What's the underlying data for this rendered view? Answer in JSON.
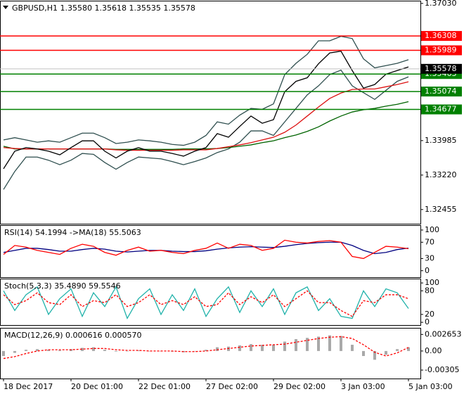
{
  "chart_data": [
    {
      "type": "line",
      "title": "GBPUSD,H1  1.35580 1.35618 1.35535 1.35578",
      "ylim": [
        1.3214,
        1.3709
      ],
      "yticks": [
        {
          "value": 1.3703,
          "label": "1.37030"
        },
        1.33985,
        {
          "value": 1.3322,
          "label": "1.33220"
        },
        1.32455
      ],
      "series": [
        {
          "color": "#2f4f4f",
          "values": [
            1.34,
            1.3405,
            1.34,
            1.3395,
            1.3398,
            1.3395,
            1.3405,
            1.3415,
            1.3415,
            1.3405,
            1.3392,
            1.3395,
            1.34,
            1.3398,
            1.3395,
            1.339,
            1.3388,
            1.3395,
            1.341,
            1.344,
            1.3435,
            1.3455,
            1.347,
            1.3468,
            1.348,
            1.3545,
            1.357,
            1.359,
            1.362,
            1.362,
            1.363,
            1.3625,
            1.358,
            1.356,
            1.3565,
            1.357,
            1.3578
          ]
        },
        {
          "color": "#2f4f4f",
          "values": [
            1.329,
            1.333,
            1.3362,
            1.3362,
            1.3355,
            1.3345,
            1.3355,
            1.337,
            1.3368,
            1.335,
            1.3335,
            1.335,
            1.3362,
            1.336,
            1.3358,
            1.3352,
            1.3345,
            1.3352,
            1.336,
            1.3372,
            1.338,
            1.3395,
            1.342,
            1.342,
            1.341,
            1.344,
            1.347,
            1.35,
            1.352,
            1.3545,
            1.3555,
            1.352,
            1.3505,
            1.349,
            1.351,
            1.353,
            1.354
          ]
        },
        {
          "color": "#006400",
          "values": [
            1.3386,
            1.338,
            1.338,
            1.338,
            1.338,
            1.338,
            1.338,
            1.338,
            1.338,
            1.338,
            1.3379,
            1.3379,
            1.3379,
            1.3379,
            1.3379,
            1.3379,
            1.338,
            1.338,
            1.338,
            1.3381,
            1.3383,
            1.3386,
            1.3389,
            1.3394,
            1.3398,
            1.3405,
            1.3411,
            1.3419,
            1.3429,
            1.3442,
            1.3453,
            1.3462,
            1.3467,
            1.347,
            1.3475,
            1.3479,
            1.3485
          ]
        },
        {
          "color": "#dd1111",
          "values": [
            1.3383,
            1.3381,
            1.338,
            1.338,
            1.338,
            1.338,
            1.338,
            1.338,
            1.338,
            1.338,
            1.3378,
            1.3377,
            1.3377,
            1.3377,
            1.3377,
            1.3377,
            1.3378,
            1.3378,
            1.3378,
            1.3381,
            1.3385,
            1.3389,
            1.3394,
            1.34,
            1.3406,
            1.3417,
            1.3433,
            1.3453,
            1.3473,
            1.3492,
            1.3504,
            1.3512,
            1.3513,
            1.3513,
            1.3518,
            1.3523,
            1.3529
          ]
        },
        {
          "color": "#000000",
          "values": [
            1.3336,
            1.3375,
            1.3383,
            1.338,
            1.3375,
            1.3367,
            1.3383,
            1.3398,
            1.3398,
            1.3375,
            1.336,
            1.3375,
            1.3383,
            1.3375,
            1.3375,
            1.337,
            1.3364,
            1.3375,
            1.3383,
            1.3414,
            1.3406,
            1.343,
            1.3453,
            1.3437,
            1.3445,
            1.3507,
            1.353,
            1.3538,
            1.3569,
            1.3593,
            1.3597,
            1.3554,
            1.3515,
            1.3523,
            1.3546,
            1.3554,
            1.3562
          ]
        }
      ],
      "levels": [
        {
          "value": 1.36308,
          "color": "#ff0000"
        },
        {
          "value": 1.35989,
          "color": "#ff0000"
        },
        {
          "value": 1.35463,
          "color": "#008000"
        },
        {
          "value": 1.35074,
          "color": "#008000"
        },
        {
          "value": 1.34677,
          "color": "#008000"
        }
      ],
      "price_label": {
        "value": 1.35578,
        "color": "#000000"
      }
    },
    {
      "type": "line",
      "title": "RSI(14) 54.1994 ->MA(18) 55.5063",
      "ylim": [
        -16,
        112
      ],
      "yticks": [
        100,
        70,
        30,
        0
      ],
      "series": [
        {
          "color": "#000080",
          "values": [
            45,
            50,
            55,
            55,
            52,
            48,
            48,
            52,
            55,
            53,
            48,
            46,
            48,
            50,
            50,
            48,
            47,
            47,
            49,
            53,
            56,
            58,
            59,
            58,
            57,
            60,
            64,
            67,
            69,
            70,
            70,
            62,
            50,
            42,
            45,
            52,
            55.5
          ]
        },
        {
          "color": "#ff0000",
          "values": [
            40,
            62,
            58,
            50,
            45,
            40,
            55,
            65,
            60,
            45,
            38,
            50,
            58,
            48,
            50,
            45,
            42,
            50,
            55,
            68,
            55,
            65,
            62,
            50,
            55,
            75,
            70,
            68,
            72,
            74,
            70,
            35,
            30,
            45,
            60,
            58,
            54
          ]
        }
      ]
    },
    {
      "type": "line",
      "title": "Stoch(5,3,3) 35.4890 59.5546",
      "ylim": [
        -7,
        111
      ],
      "yticks": [
        100,
        80,
        20,
        0
      ],
      "series": [
        {
          "color": "#20b2aa",
          "values": [
            80,
            30,
            70,
            90,
            20,
            60,
            85,
            15,
            75,
            40,
            90,
            10,
            60,
            85,
            20,
            70,
            30,
            85,
            15,
            60,
            90,
            25,
            80,
            40,
            85,
            20,
            75,
            90,
            30,
            60,
            15,
            10,
            80,
            40,
            85,
            75,
            35
          ]
        },
        {
          "color": "#ff0000",
          "dash": true,
          "values": [
            70,
            45,
            55,
            75,
            50,
            45,
            70,
            40,
            55,
            50,
            70,
            40,
            50,
            70,
            45,
            55,
            45,
            65,
            40,
            45,
            75,
            45,
            65,
            50,
            70,
            40,
            60,
            80,
            50,
            50,
            30,
            15,
            55,
            50,
            70,
            70,
            60
          ]
        }
      ]
    },
    {
      "type": "line",
      "title": "MACD(12,26,9) 0.000616 0.000570",
      "ylim": [
        -0.0044,
        0.0037
      ],
      "yticks": [
        0.002653,
        {
          "value": 0,
          "label": "0.00"
        },
        -0.00305
      ],
      "categories": [
        "18 Dec 2017",
        null,
        null,
        null,
        null,
        null,
        "20 Dec 01:00",
        null,
        null,
        null,
        null,
        null,
        "22 Dec 01:00",
        null,
        null,
        null,
        null,
        null,
        "27 Dec 02:00",
        null,
        null,
        null,
        null,
        null,
        "29 Dec 02:00",
        null,
        null,
        null,
        null,
        null,
        "3 Jan 03:00",
        null,
        null,
        null,
        null,
        null,
        "5 Jan 03:00"
      ],
      "series": [
        {
          "type": "bar",
          "color": "#a9a9a9",
          "values": [
            -0.0008,
            -0.0003,
            0.0002,
            0.0003,
            0.0002,
            0.0001,
            0.0003,
            0.0005,
            0.0006,
            0.0002,
            -0.0001,
            0,
            0.0001,
            0,
            0,
            -0.0001,
            -0.0002,
            0,
            0.0002,
            0.0006,
            0.0007,
            0.0009,
            0.0011,
            0.001,
            0.001,
            0.0015,
            0.0019,
            0.0021,
            0.0023,
            0.0025,
            0.0024,
            0.001,
            -0.0008,
            -0.0014,
            -0.0006,
            0.0003,
            0.0006
          ]
        },
        {
          "color": "#ff0000",
          "dash": true,
          "values": [
            -0.0012,
            -0.0009,
            -0.0004,
            0,
            0.0002,
            0.0002,
            0.0002,
            0.0003,
            0.0004,
            0.0004,
            0.0002,
            0.0001,
            0.0001,
            0,
            0,
            0,
            -0.0001,
            -0.0001,
            0,
            0.0002,
            0.0004,
            0.0006,
            0.0008,
            0.0009,
            0.001,
            0.0011,
            0.0014,
            0.0017,
            0.002,
            0.0022,
            0.0023,
            0.002,
            0.001,
            -0.0002,
            -0.0008,
            -0.0003,
            0.00057
          ]
        }
      ]
    }
  ]
}
